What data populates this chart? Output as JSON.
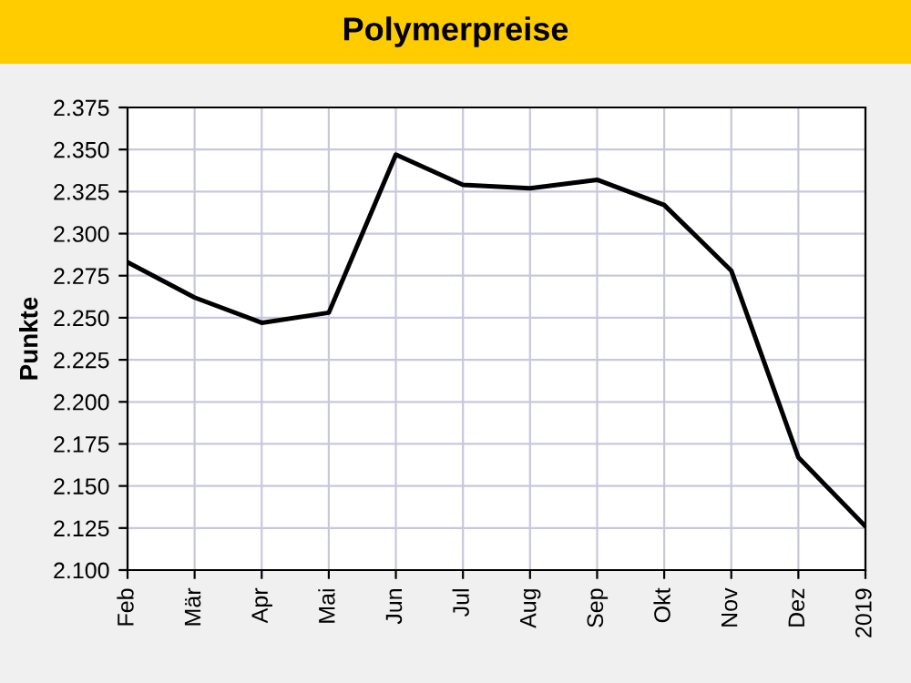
{
  "chart_data": {
    "type": "line",
    "title": "Polymerpreise",
    "ylabel": "Punkte",
    "categories": [
      "Feb",
      "Mär",
      "Apr",
      "Mai",
      "Jun",
      "Jul",
      "Aug",
      "Sep",
      "Okt",
      "Nov",
      "Dez",
      "2019"
    ],
    "series": [
      {
        "color": "#000000",
        "values": [
          2.283,
          2.262,
          2.247,
          2.253,
          2.347,
          2.329,
          2.327,
          2.332,
          2.317,
          2.278,
          2.167,
          2.126
        ]
      }
    ],
    "ylim": [
      2.1,
      2.375
    ],
    "yticks": [
      {
        "value": 2.1,
        "label": "2.100"
      },
      {
        "value": 2.125,
        "label": "2.125"
      },
      {
        "value": 2.15,
        "label": "2.150"
      },
      {
        "value": 2.175,
        "label": "2.175"
      },
      {
        "value": 2.2,
        "label": "2.200"
      },
      {
        "value": 2.225,
        "label": "2.225"
      },
      {
        "value": 2.25,
        "label": "2.250"
      },
      {
        "value": 2.275,
        "label": "2.275"
      },
      {
        "value": 2.3,
        "label": "2.300"
      },
      {
        "value": 2.325,
        "label": "2.325"
      },
      {
        "value": 2.35,
        "label": "2.350"
      },
      {
        "value": 2.375,
        "label": "2.375"
      }
    ],
    "grid": true,
    "line_style": "solid",
    "marker": "none"
  }
}
